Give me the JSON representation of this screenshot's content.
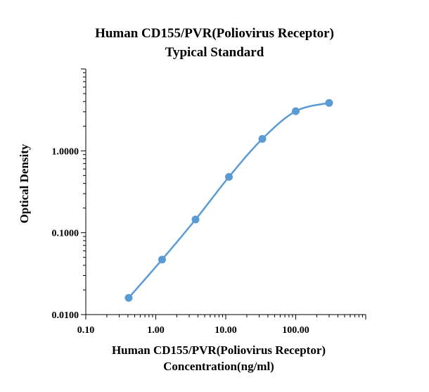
{
  "chart_data": {
    "type": "scatter",
    "title": [
      "Human CD155/PVR(Poliovirus Receptor)",
      "Typical Standard"
    ],
    "xlabel": [
      "Human CD155/PVR(Poliovirus Receptor)",
      "Concentration(ng/ml)"
    ],
    "ylabel": "Optical Density",
    "x_scale": "log",
    "y_scale": "log",
    "xlim": [
      0.1,
      1000
    ],
    "ylim": [
      0.01,
      10
    ],
    "x_ticks": [
      "0.10",
      "1.00",
      "10.00",
      "100.00"
    ],
    "x_tick_values": [
      0.1,
      1,
      10,
      100
    ],
    "y_ticks": [
      "0.0100",
      "0.1000",
      "1.0000"
    ],
    "y_tick_values": [
      0.01,
      0.1,
      1
    ],
    "grid": false,
    "legend": "none",
    "series": [
      {
        "x": [
          0.41,
          1.23,
          3.7,
          11.1,
          33.3,
          100,
          300
        ],
        "y": [
          0.016,
          0.047,
          0.145,
          0.48,
          1.4,
          3.05,
          3.85
        ]
      }
    ],
    "color": "#5b9bd5"
  }
}
